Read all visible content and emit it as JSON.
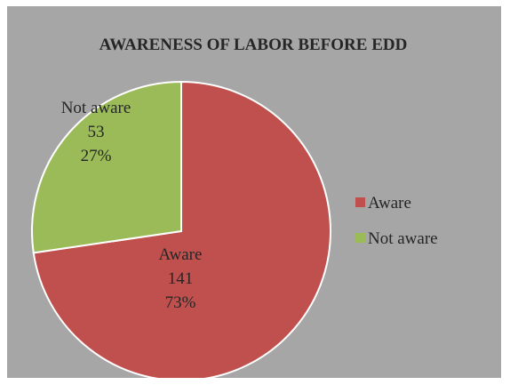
{
  "chart_data": {
    "type": "pie",
    "title": "AWARENESS OF LABOR BEFORE EDD",
    "slices": [
      {
        "label": "Aware",
        "value": 141,
        "percent": "73%",
        "color": "#c0504d"
      },
      {
        "label": "Not aware",
        "value": 53,
        "percent": "27%",
        "color": "#9bbb59"
      }
    ],
    "legend": {
      "placement": "right",
      "entries": [
        "Aware",
        "Not aware"
      ]
    },
    "background_color": "#a6a6a6",
    "border_color": "#ffffff"
  }
}
